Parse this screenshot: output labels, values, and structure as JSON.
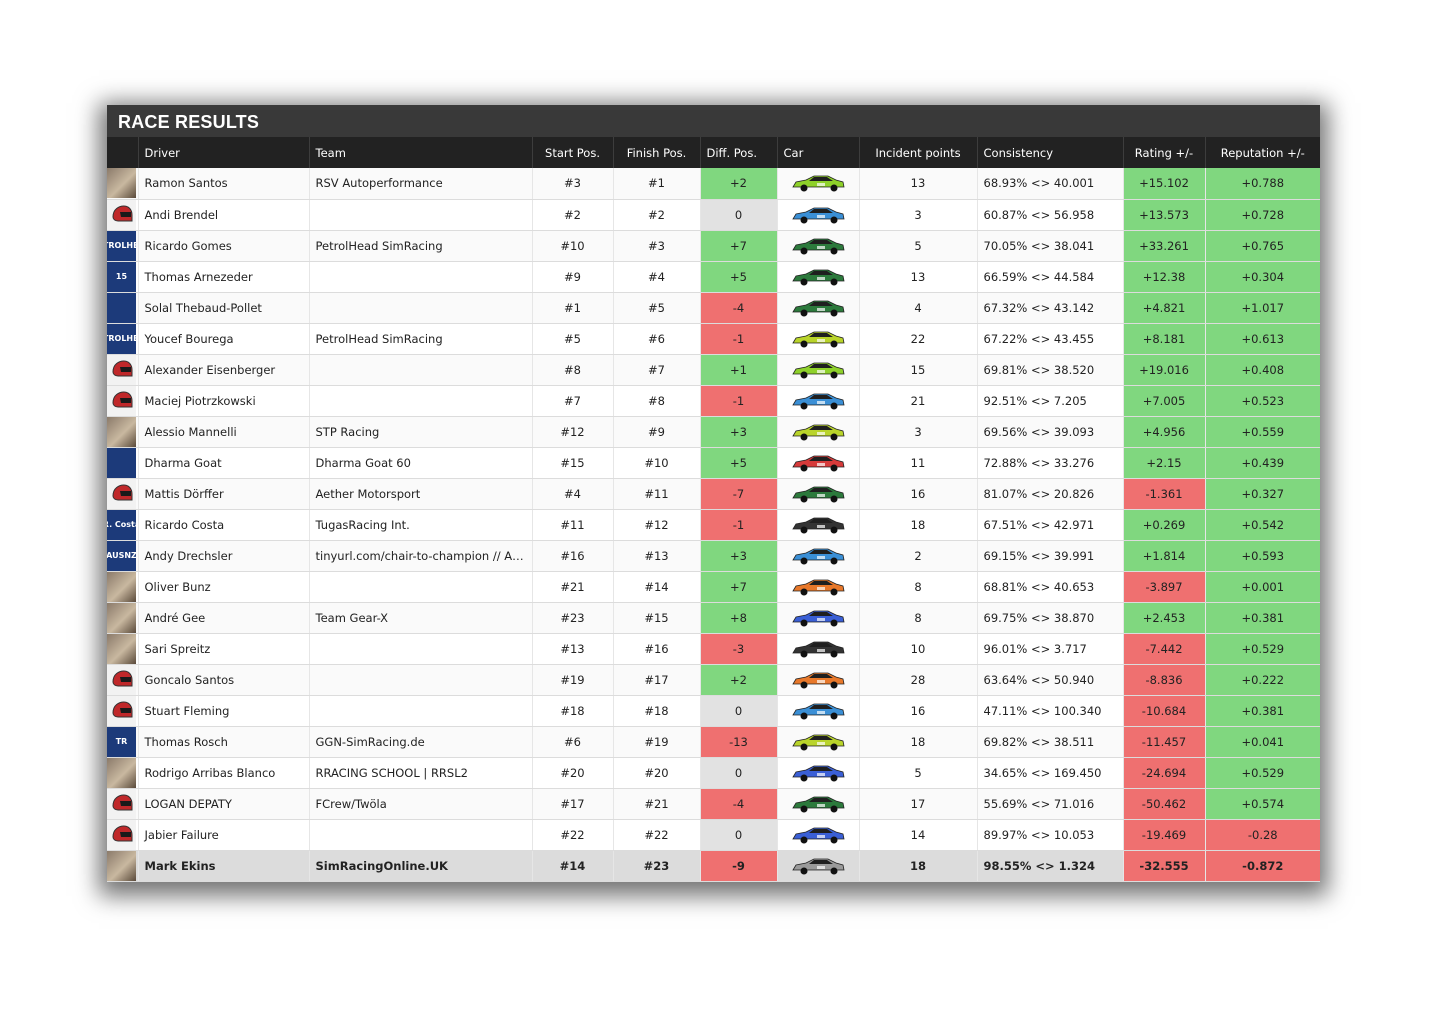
{
  "title": "RACE RESULTS",
  "columns": {
    "driver": "Driver",
    "team": "Team",
    "start": "Start Pos.",
    "finish": "Finish Pos.",
    "diff": "Diff. Pos.",
    "car": "Car",
    "incidents": "Incident points",
    "consistency": "Consistency",
    "rating": "Rating +/-",
    "reputation": "Reputation +/-"
  },
  "rows": [
    {
      "driver": "Ramon Santos",
      "team": "RSV Autoperformance",
      "start": "#3",
      "finish": "#1",
      "diff": "+2",
      "incidents": "13",
      "consistency": "68.93% <> 40.001",
      "rating": "+15.102",
      "reputation": "+0.788",
      "avatar": "photo",
      "car_color": "#8ed12a"
    },
    {
      "driver": "Andi Brendel",
      "team": "",
      "start": "#2",
      "finish": "#2",
      "diff": "0",
      "incidents": "3",
      "consistency": "60.87% <> 56.958",
      "rating": "+13.573",
      "reputation": "+0.728",
      "avatar": "helmet-icon",
      "car_color": "#3a8fd6"
    },
    {
      "driver": "Ricardo Gomes",
      "team": "PetrolHead SimRacing",
      "start": "#10",
      "finish": "#3",
      "diff": "+7",
      "incidents": "5",
      "consistency": "70.05% <> 38.041",
      "rating": "+33.261",
      "reputation": "+0.765",
      "avatar": "logo",
      "avatar_text": "PETROLHEAD",
      "car_color": "#2c7a3c"
    },
    {
      "driver": "Thomas Arnezeder",
      "team": "",
      "start": "#9",
      "finish": "#4",
      "diff": "+5",
      "incidents": "13",
      "consistency": "66.59% <> 44.584",
      "rating": "+12.38",
      "reputation": "+0.304",
      "avatar": "logo",
      "avatar_text": "15",
      "car_color": "#2c7a3c"
    },
    {
      "driver": "Solal Thebaud-Pollet",
      "team": "",
      "start": "#1",
      "finish": "#5",
      "diff": "-4",
      "incidents": "4",
      "consistency": "67.32% <> 43.142",
      "rating": "+4.821",
      "reputation": "+1.017",
      "avatar": "logo",
      "avatar_text": "",
      "car_color": "#2c7a3c"
    },
    {
      "driver": "Youcef Bourega",
      "team": "PetrolHead SimRacing",
      "start": "#5",
      "finish": "#6",
      "diff": "-1",
      "incidents": "22",
      "consistency": "67.22% <> 43.455",
      "rating": "+8.181",
      "reputation": "+0.613",
      "avatar": "logo",
      "avatar_text": "PETROLHEAD",
      "car_color": "#b9d42a"
    },
    {
      "driver": "Alexander Eisenberger",
      "team": "",
      "start": "#8",
      "finish": "#7",
      "diff": "+1",
      "incidents": "15",
      "consistency": "69.81% <> 38.520",
      "rating": "+19.016",
      "reputation": "+0.408",
      "avatar": "helmet-icon",
      "car_color": "#8ed12a"
    },
    {
      "driver": "Maciej Piotrzkowski",
      "team": "",
      "start": "#7",
      "finish": "#8",
      "diff": "-1",
      "incidents": "21",
      "consistency": "92.51% <> 7.205",
      "rating": "+7.005",
      "reputation": "+0.523",
      "avatar": "helmet-icon",
      "car_color": "#3a8fd6"
    },
    {
      "driver": "Alessio Mannelli",
      "team": "STP Racing",
      "start": "#12",
      "finish": "#9",
      "diff": "+3",
      "incidents": "3",
      "consistency": "69.56% <> 39.093",
      "rating": "+4.956",
      "reputation": "+0.559",
      "avatar": "photo",
      "car_color": "#b9d42a"
    },
    {
      "driver": "Dharma Goat",
      "team": "Dharma Goat 60",
      "start": "#15",
      "finish": "#10",
      "diff": "+5",
      "incidents": "11",
      "consistency": "72.88% <> 33.276",
      "rating": "+2.15",
      "reputation": "+0.439",
      "avatar": "logo",
      "avatar_text": "",
      "car_color": "#d63a3a"
    },
    {
      "driver": "Mattis Dörffer",
      "team": "Aether Motorsport",
      "start": "#4",
      "finish": "#11",
      "diff": "-7",
      "incidents": "16",
      "consistency": "81.07% <> 20.826",
      "rating": "-1.361",
      "reputation": "+0.327",
      "avatar": "helmet-icon",
      "car_color": "#2c7a3c"
    },
    {
      "driver": "Ricardo Costa",
      "team": "TugasRacing Int.",
      "start": "#11",
      "finish": "#12",
      "diff": "-1",
      "incidents": "18",
      "consistency": "67.51% <> 42.971",
      "rating": "+0.269",
      "reputation": "+0.542",
      "avatar": "logo",
      "avatar_text": "R. Costa",
      "car_color": "#333333"
    },
    {
      "driver": "Andy Drechsler",
      "team": "tinyurl.com/chair-to-champion // AUSNZ ...",
      "start": "#16",
      "finish": "#13",
      "diff": "+3",
      "incidents": "2",
      "consistency": "69.15% <> 39.991",
      "rating": "+1.814",
      "reputation": "+0.593",
      "avatar": "logo",
      "avatar_text": "AUSNZ",
      "car_color": "#3a8fd6"
    },
    {
      "driver": "Oliver Bunz",
      "team": "",
      "start": "#21",
      "finish": "#14",
      "diff": "+7",
      "incidents": "8",
      "consistency": "68.81% <> 40.653",
      "rating": "-3.897",
      "reputation": "+0.001",
      "avatar": "photo",
      "car_color": "#e8782a"
    },
    {
      "driver": "André Gee",
      "team": "Team Gear-X",
      "start": "#23",
      "finish": "#15",
      "diff": "+8",
      "incidents": "8",
      "consistency": "69.75% <> 38.870",
      "rating": "+2.453",
      "reputation": "+0.381",
      "avatar": "photo",
      "car_color": "#3a5fd6"
    },
    {
      "driver": "Sari Spreitz",
      "team": "",
      "start": "#13",
      "finish": "#16",
      "diff": "-3",
      "incidents": "10",
      "consistency": "96.01% <> 3.717",
      "rating": "-7.442",
      "reputation": "+0.529",
      "avatar": "photo",
      "car_color": "#333333"
    },
    {
      "driver": "Goncalo Santos",
      "team": "",
      "start": "#19",
      "finish": "#17",
      "diff": "+2",
      "incidents": "28",
      "consistency": "63.64% <> 50.940",
      "rating": "-8.836",
      "reputation": "+0.222",
      "avatar": "helmet-icon",
      "car_color": "#e8782a"
    },
    {
      "driver": "Stuart Fleming",
      "team": "",
      "start": "#18",
      "finish": "#18",
      "diff": "0",
      "incidents": "16",
      "consistency": "47.11% <> 100.340",
      "rating": "-10.684",
      "reputation": "+0.381",
      "avatar": "helmet-icon",
      "car_color": "#3a8fd6"
    },
    {
      "driver": "Thomas Rosch",
      "team": "GGN-SimRacing.de",
      "start": "#6",
      "finish": "#19",
      "diff": "-13",
      "incidents": "18",
      "consistency": "69.82% <> 38.511",
      "rating": "-11.457",
      "reputation": "+0.041",
      "avatar": "logo",
      "avatar_text": "TR",
      "car_color": "#b9d42a"
    },
    {
      "driver": "Rodrigo Arribas Blanco",
      "team": "RRACING SCHOOL | RRSL2",
      "start": "#20",
      "finish": "#20",
      "diff": "0",
      "incidents": "5",
      "consistency": "34.65% <> 169.450",
      "rating": "-24.694",
      "reputation": "+0.529",
      "avatar": "photo",
      "car_color": "#3a5fd6"
    },
    {
      "driver": "LOGAN DEPATY",
      "team": "FCrew/Twöla",
      "start": "#17",
      "finish": "#21",
      "diff": "-4",
      "incidents": "17",
      "consistency": "55.69% <> 71.016",
      "rating": "-50.462",
      "reputation": "+0.574",
      "avatar": "helmet-icon",
      "car_color": "#2c7a3c"
    },
    {
      "driver": "Jabier Failure",
      "team": "",
      "start": "#22",
      "finish": "#22",
      "diff": "0",
      "incidents": "14",
      "consistency": "89.97% <> 10.053",
      "rating": "-19.469",
      "reputation": "-0.28",
      "avatar": "helmet-icon",
      "car_color": "#3a5fd6"
    },
    {
      "driver": "Mark Ekins",
      "team": "SimRacingOnline.UK",
      "start": "#14",
      "finish": "#23",
      "diff": "-9",
      "incidents": "18",
      "consistency": "98.55% <> 1.324",
      "rating": "-32.555",
      "reputation": "-0.872",
      "avatar": "photo",
      "car_color": "#9a9a9a",
      "highlight": true
    }
  ],
  "colors": {
    "positive": "#80d77f",
    "negative": "#ef7070",
    "neutral": "#e2e2e2",
    "header": "#222222",
    "title_bar": "#393939"
  }
}
